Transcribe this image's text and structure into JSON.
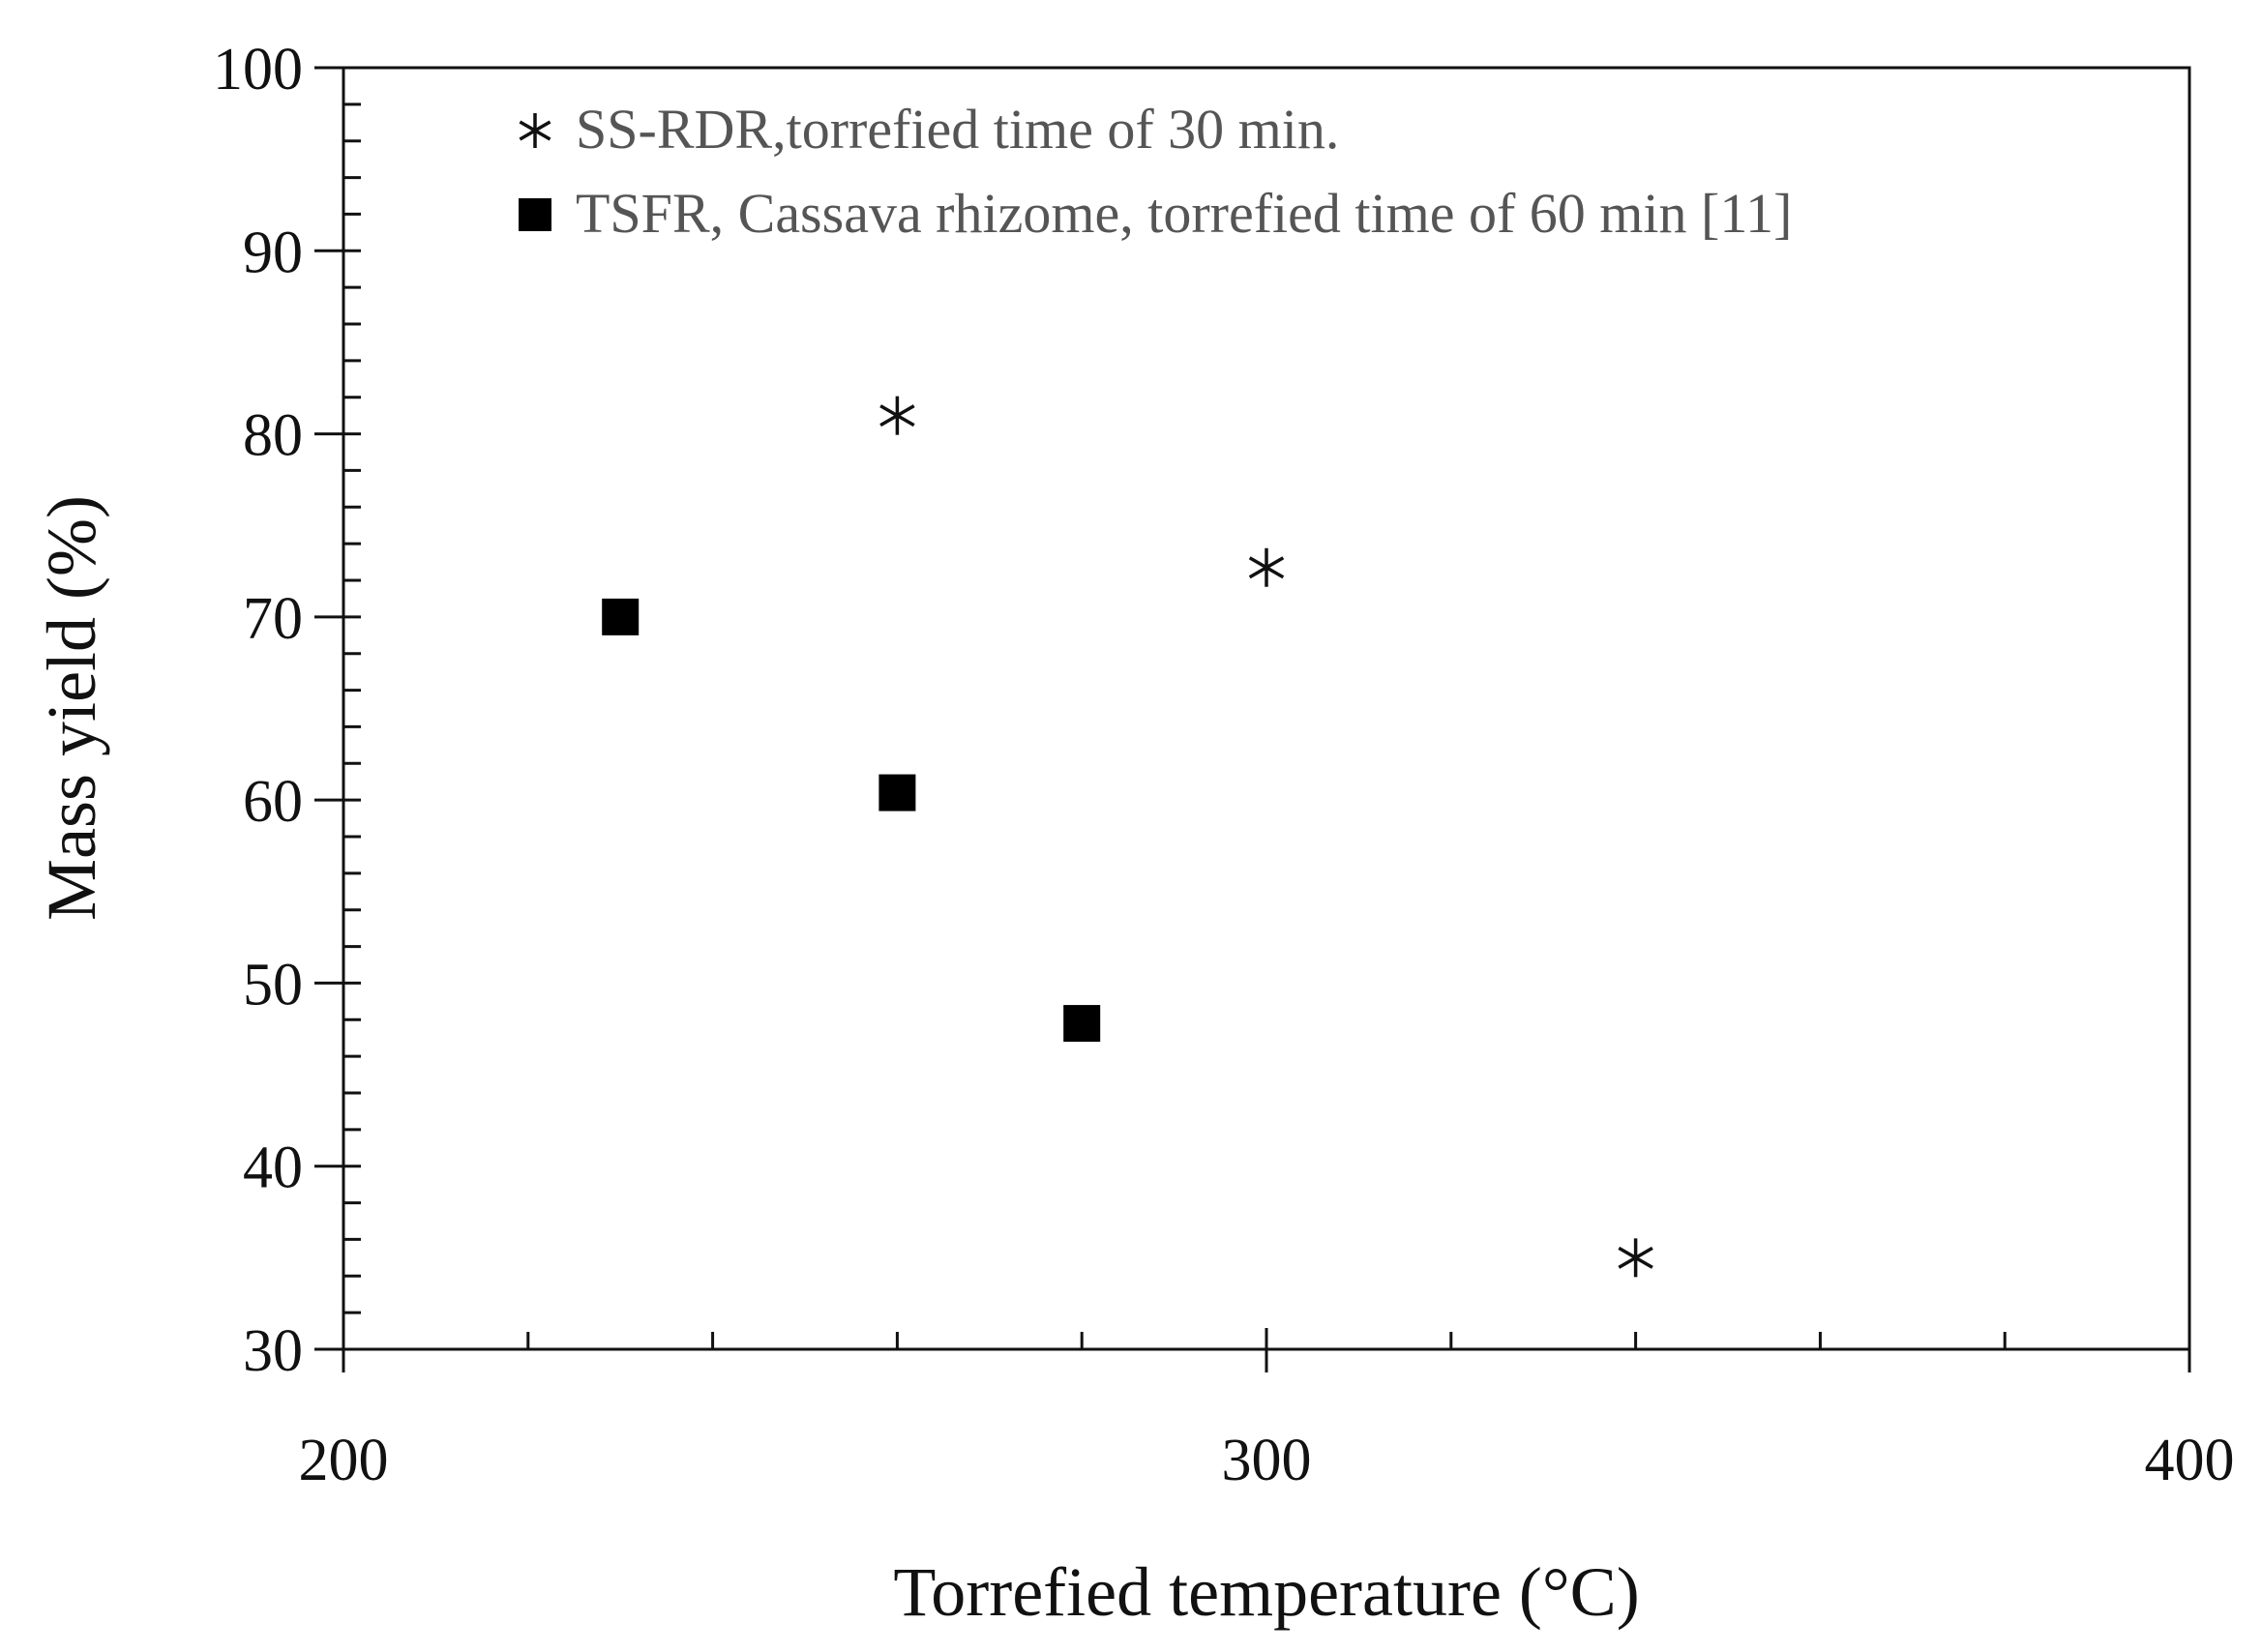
{
  "chart_data": {
    "type": "scatter",
    "title": "",
    "xlabel": "Torrefied temperature (°C)",
    "ylabel": "Mass yield (%)",
    "xlim": [
      200,
      400
    ],
    "ylim": [
      30,
      100
    ],
    "x_ticks": [
      200,
      300,
      400
    ],
    "x_minor_step": 20,
    "y_ticks": [
      30,
      40,
      50,
      60,
      70,
      80,
      90,
      100
    ],
    "y_minor_step": 2,
    "grid": false,
    "legend_position": "top-left",
    "series": [
      {
        "name": "SS-RDR,torrefied time of 30 min.",
        "marker": "asterisk",
        "color": "#111111",
        "points": [
          {
            "x": 260,
            "y": 81
          },
          {
            "x": 300,
            "y": 72.7
          },
          {
            "x": 340,
            "y": 35
          }
        ]
      },
      {
        "name": "TSFR, Cassava rhizome, torrefied time of 60 min [11]",
        "marker": "square",
        "color": "#000000",
        "points": [
          {
            "x": 230,
            "y": 70
          },
          {
            "x": 260,
            "y": 60.4
          },
          {
            "x": 280,
            "y": 47.8
          }
        ]
      }
    ]
  }
}
